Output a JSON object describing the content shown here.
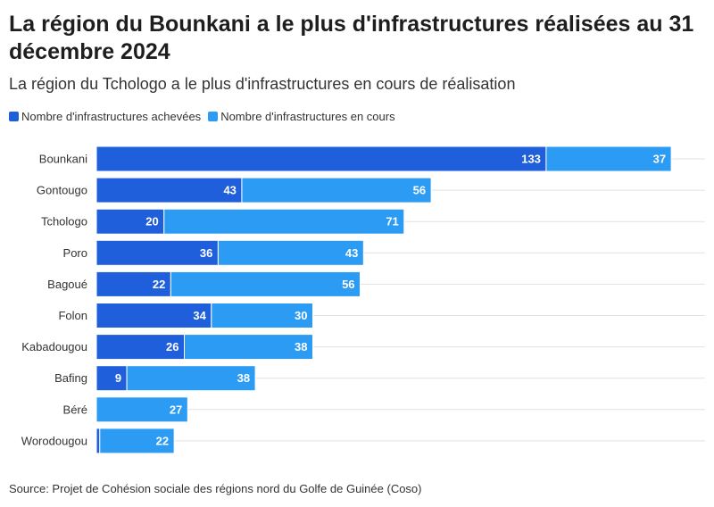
{
  "title": "La région du Bounkani a le plus d'infrastructures réalisées au 31 décembre 2024",
  "subtitle": "La région du Tchologo a le plus d'infrastructures en cours de réalisation",
  "source": "Source: Projet de Cohésion sociale des régions nord du Golfe de Guinée (Coso)",
  "colors": {
    "completed": "#1f5fdc",
    "ongoing": "#2b9bf4",
    "grid": "#e2e2e2"
  },
  "chart_data": {
    "type": "bar",
    "orientation": "horizontal",
    "stacked": true,
    "categories": [
      "Bounkani",
      "Gontougo",
      "Tchologo",
      "Poro",
      "Bagoué",
      "Folon",
      "Kabadougou",
      "Bafing",
      "Béré",
      "Worodougou"
    ],
    "series": [
      {
        "name": "Nombre d'infrastructures achevées",
        "values": [
          133,
          43,
          20,
          36,
          22,
          34,
          26,
          9,
          0,
          1
        ]
      },
      {
        "name": "Nombre d'infrastructures en cours",
        "values": [
          37,
          56,
          71,
          43,
          56,
          30,
          38,
          38,
          27,
          22
        ]
      }
    ],
    "xlim": [
      0,
      180
    ],
    "grid": true,
    "legend_position": "top-left"
  }
}
